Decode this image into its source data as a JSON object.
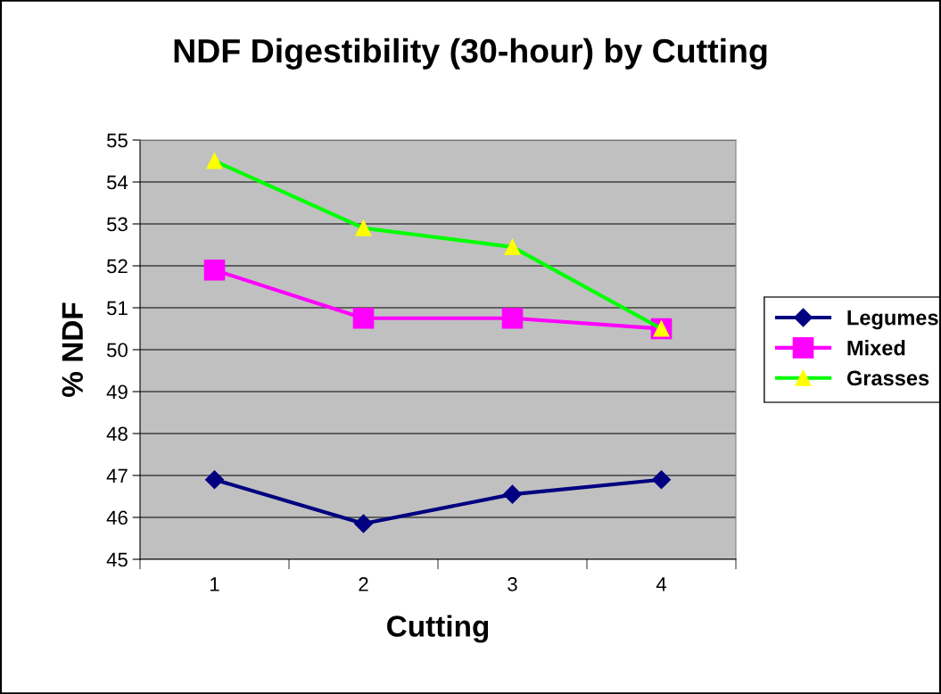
{
  "chart_data": {
    "type": "line",
    "title": "NDF Digestibility (30-hour) by Cutting",
    "xlabel": "Cutting",
    "ylabel": "% NDF",
    "categories": [
      "1",
      "2",
      "3",
      "4"
    ],
    "series": [
      {
        "name": "Legumes",
        "color": "#000080",
        "marker": "diamond",
        "values": [
          46.9,
          45.85,
          46.55,
          46.9
        ]
      },
      {
        "name": "Mixed",
        "color": "#ff00ff",
        "marker": "square",
        "values": [
          51.9,
          50.75,
          50.75,
          50.5
        ]
      },
      {
        "name": "Grasses",
        "color": "#00ff00",
        "marker": "triangle",
        "values": [
          54.5,
          52.9,
          52.45,
          50.5
        ]
      }
    ],
    "ylim": [
      45,
      55
    ],
    "yticks": [
      45,
      46,
      47,
      48,
      49,
      50,
      51,
      52,
      53,
      54,
      55
    ],
    "grid": "y",
    "legend": "right"
  }
}
